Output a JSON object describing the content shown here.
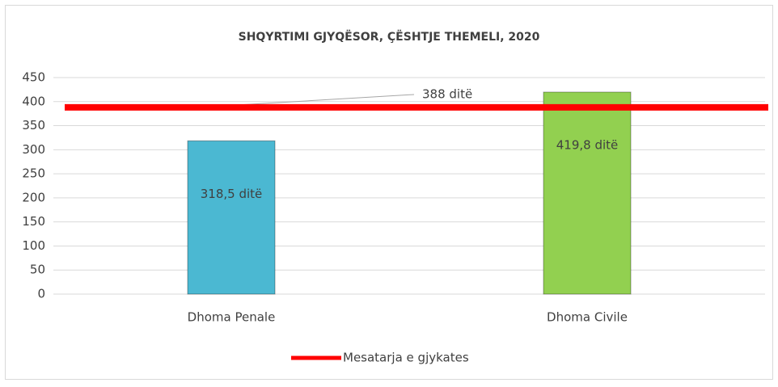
{
  "chart_data": {
    "type": "bar",
    "title": "SHQYRTIMI GJYQËSOR, ÇËSHTJE THEMELI, 2020",
    "categories": [
      "Dhoma Penale",
      "Dhoma Civile"
    ],
    "values": [
      318.5,
      419.8
    ],
    "value_labels": [
      "318,5 ditë",
      "419,8 ditë"
    ],
    "colors": [
      "#4bb8d2",
      "#92d050"
    ],
    "ylim": [
      0,
      450
    ],
    "yticks": [
      0,
      50,
      100,
      150,
      200,
      250,
      300,
      350,
      400,
      450
    ],
    "grid": true,
    "reference": {
      "name": "Mesatarja e gjykates",
      "value": 388,
      "value_label": "388 ditë",
      "color": "#ff0000"
    },
    "legend": "bottom"
  }
}
